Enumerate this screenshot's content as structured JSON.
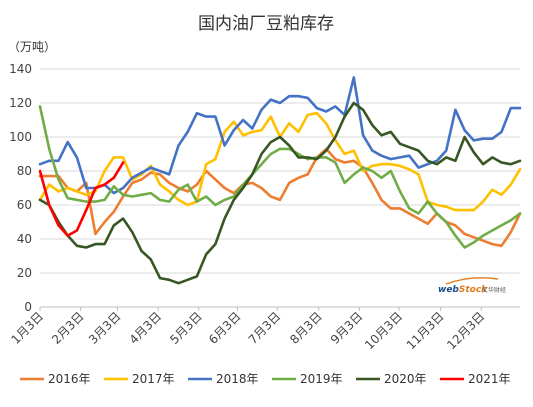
{
  "chart_data": {
    "type": "line",
    "title": "国内油厂豆粕库存",
    "ylabel": "（万吨）",
    "xlabel": "",
    "ylim": [
      0,
      140
    ],
    "yticks": [
      0,
      20,
      40,
      60,
      80,
      100,
      120,
      140
    ],
    "x_domain": [
      1,
      53
    ],
    "xtick_labels": [
      "1月3日",
      "2月3日",
      "3月3日",
      "4月3日",
      "5月3日",
      "6月3日",
      "7月3日",
      "8月3日",
      "9月3日",
      "10月3日",
      "11月3日",
      "12月3日"
    ],
    "xtick_positions": [
      1,
      5.4,
      9.4,
      13.8,
      18.2,
      22.4,
      26.7,
      31.2,
      35.6,
      39.9,
      44.4,
      48.8
    ],
    "grid": "horizontal",
    "legend_position": "bottom",
    "series": [
      {
        "name": "2016年",
        "color": "#ed7d31",
        "x": [
          1,
          2,
          3,
          4,
          5,
          6,
          7,
          8,
          9,
          10,
          11,
          12,
          13,
          14,
          15,
          16,
          17,
          18,
          19,
          20,
          21,
          22,
          23,
          24,
          25,
          26,
          27,
          28,
          29,
          30,
          31,
          32,
          33,
          34,
          35,
          36,
          37,
          38,
          39,
          40,
          41,
          42,
          43,
          44,
          45,
          46,
          47,
          48,
          49,
          50,
          51,
          52,
          53
        ],
        "values": [
          77,
          77,
          77,
          70,
          68,
          73,
          43,
          50,
          56,
          65,
          73,
          75,
          79,
          78,
          73,
          70,
          68,
          72,
          80,
          75,
          70,
          67,
          72,
          73,
          70,
          65,
          63,
          73,
          76,
          78,
          88,
          93,
          87,
          85,
          86,
          82,
          73,
          63,
          58,
          58,
          55,
          52,
          49,
          55,
          50,
          48,
          43,
          41,
          39,
          37,
          36,
          44,
          55
        ]
      },
      {
        "name": "2017年",
        "color": "#ffc000",
        "x": [
          1,
          2,
          3,
          4,
          5,
          6,
          7,
          8,
          9,
          10,
          11,
          12,
          13,
          14,
          15,
          16,
          17,
          18,
          19,
          20,
          21,
          22,
          23,
          24,
          25,
          26,
          27,
          28,
          29,
          30,
          31,
          32,
          33,
          34,
          35,
          36,
          37,
          38,
          39,
          40,
          41,
          42,
          43,
          44,
          45,
          46,
          47,
          48,
          49,
          50,
          51,
          52,
          53
        ],
        "values": [
          63,
          72,
          68,
          70,
          68,
          66,
          68,
          80,
          88,
          88,
          75,
          78,
          83,
          72,
          68,
          63,
          60,
          62,
          84,
          87,
          103,
          109,
          101,
          103,
          104,
          112,
          100,
          108,
          103,
          113,
          114,
          108,
          98,
          90,
          92,
          80,
          83,
          84,
          84,
          83,
          81,
          78,
          62,
          60,
          59,
          57,
          57,
          57,
          62,
          69,
          66,
          72,
          81
        ]
      },
      {
        "name": "2018年",
        "color": "#4472c4",
        "x": [
          1,
          2,
          3,
          4,
          5,
          6,
          7,
          8,
          9,
          10,
          11,
          12,
          13,
          14,
          15,
          16,
          17,
          18,
          19,
          20,
          21,
          22,
          23,
          24,
          25,
          26,
          27,
          28,
          29,
          30,
          31,
          32,
          33,
          34,
          35,
          36,
          37,
          38,
          39,
          40,
          41,
          42,
          43,
          44,
          45,
          46,
          47,
          48,
          49,
          50,
          51,
          52,
          53
        ],
        "values": [
          84,
          86,
          86,
          97,
          88,
          70,
          70,
          72,
          67,
          70,
          76,
          79,
          82,
          80,
          78,
          95,
          103,
          114,
          112,
          112,
          95,
          104,
          110,
          105,
          116,
          122,
          120,
          124,
          124,
          123,
          117,
          115,
          118,
          113,
          135,
          101,
          92,
          89,
          87,
          88,
          89,
          82,
          84,
          86,
          92,
          116,
          104,
          98,
          99,
          99,
          103,
          117,
          117
        ]
      },
      {
        "name": "2019年",
        "color": "#70ad47",
        "x": [
          1,
          2,
          3,
          4,
          5,
          6,
          7,
          8,
          9,
          10,
          11,
          12,
          13,
          14,
          15,
          16,
          17,
          18,
          19,
          20,
          21,
          22,
          23,
          24,
          25,
          26,
          27,
          28,
          29,
          30,
          31,
          32,
          33,
          34,
          35,
          36,
          37,
          38,
          39,
          40,
          41,
          42,
          43,
          44,
          45,
          46,
          47,
          48,
          49,
          50,
          51,
          52,
          53
        ],
        "values": [
          118,
          93,
          75,
          64,
          63,
          62,
          62,
          63,
          71,
          66,
          65,
          66,
          67,
          63,
          62,
          69,
          72,
          62,
          65,
          60,
          63,
          65,
          72,
          78,
          84,
          90,
          93,
          93,
          90,
          87,
          88,
          88,
          85,
          73,
          78,
          82,
          80,
          76,
          80,
          68,
          58,
          55,
          62,
          55,
          50,
          42,
          35,
          38,
          42,
          45,
          48,
          51,
          55
        ]
      },
      {
        "name": "2020年",
        "color": "#375623",
        "x": [
          1,
          2,
          3,
          4,
          5,
          6,
          7,
          8,
          9,
          10,
          11,
          12,
          13,
          14,
          15,
          16,
          17,
          18,
          19,
          20,
          21,
          22,
          23,
          24,
          25,
          26,
          27,
          28,
          29,
          30,
          31,
          32,
          33,
          34,
          35,
          36,
          37,
          38,
          39,
          40,
          41,
          42,
          43,
          44,
          45,
          46,
          47,
          48,
          49,
          50,
          51,
          52,
          53
        ],
        "values": [
          63,
          60,
          50,
          42,
          36,
          35,
          37,
          37,
          48,
          52,
          44,
          33,
          28,
          17,
          16,
          14,
          16,
          18,
          31,
          37,
          52,
          63,
          70,
          78,
          90,
          97,
          100,
          95,
          88,
          88,
          87,
          92,
          100,
          112,
          120,
          116,
          107,
          101,
          103,
          96,
          94,
          92,
          86,
          84,
          88,
          86,
          100,
          91,
          84,
          88,
          85,
          84,
          86
        ]
      },
      {
        "name": "2021年",
        "color": "#ff0000",
        "x": [
          1,
          2,
          3,
          4,
          5,
          6,
          7,
          8,
          9,
          10
        ],
        "values": [
          80,
          60,
          48,
          42,
          45,
          57,
          70,
          72,
          76,
          85
        ]
      }
    ]
  },
  "watermark": {
    "brand_part1": "web",
    "brand_part2": "Stock",
    "brand_sub": "文华财经"
  }
}
